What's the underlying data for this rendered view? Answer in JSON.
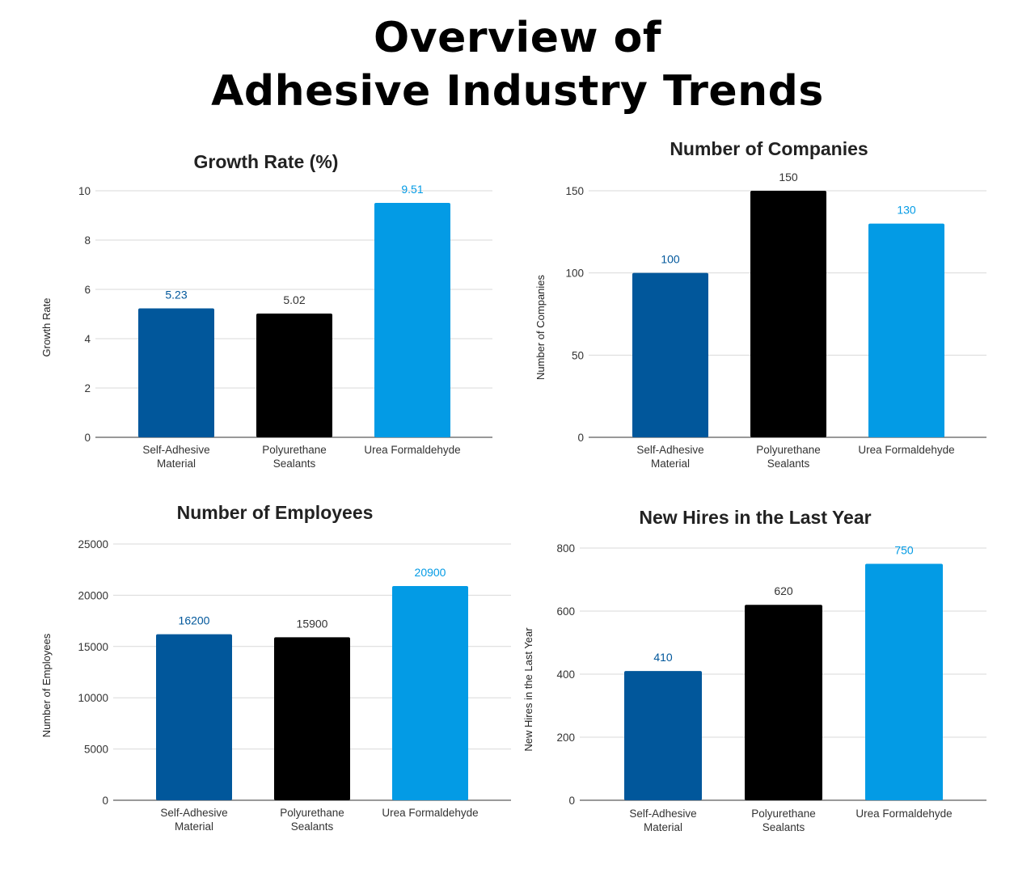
{
  "page": {
    "title_line1": "Overview of",
    "title_line2": "Adhesive Industry Trends"
  },
  "colors": {
    "self_adhesive": "#01579b",
    "polyurethane": "#000000",
    "urea": "#039be5"
  },
  "chart_data": [
    {
      "type": "bar",
      "title": "Growth Rate (%)",
      "xlabel": "",
      "ylabel": "Growth Rate",
      "categories": [
        [
          "Self-Adhesive",
          "Material"
        ],
        [
          "Polyurethane",
          "Sealants"
        ],
        [
          "Urea Formaldehyde"
        ]
      ],
      "values": [
        5.23,
        5.02,
        9.51
      ],
      "value_labels": [
        "5.23",
        "5.02",
        "9.51"
      ],
      "ylim": [
        0,
        10
      ],
      "yticks": [
        0,
        2,
        4,
        6,
        8,
        10
      ],
      "grid": true,
      "legend": "none"
    },
    {
      "type": "bar",
      "title": "Number of Companies",
      "xlabel": "",
      "ylabel": "Number of Companies",
      "categories": [
        [
          "Self-Adhesive",
          "Material"
        ],
        [
          "Polyurethane",
          "Sealants"
        ],
        [
          "Urea Formaldehyde"
        ]
      ],
      "values": [
        100,
        150,
        130
      ],
      "value_labels": [
        "100",
        "150",
        "130"
      ],
      "ylim": [
        0,
        150
      ],
      "yticks": [
        0,
        50,
        100,
        150
      ],
      "grid": true,
      "legend": "none"
    },
    {
      "type": "bar",
      "title": "Number of Employees",
      "xlabel": "",
      "ylabel": "Number of Employees",
      "categories": [
        [
          "Self-Adhesive",
          "Material"
        ],
        [
          "Polyurethane",
          "Sealants"
        ],
        [
          "Urea Formaldehyde"
        ]
      ],
      "values": [
        16200,
        15900,
        20900
      ],
      "value_labels": [
        "16200",
        "15900",
        "20900"
      ],
      "ylim": [
        0,
        25000
      ],
      "yticks": [
        0,
        5000,
        10000,
        15000,
        20000,
        25000
      ],
      "grid": true,
      "legend": "none"
    },
    {
      "type": "bar",
      "title": "New Hires in the Last Year",
      "xlabel": "",
      "ylabel": "New Hires in the Last Year",
      "categories": [
        [
          "Self-Adhesive",
          "Material"
        ],
        [
          "Polyurethane",
          "Sealants"
        ],
        [
          "Urea Formaldehyde"
        ]
      ],
      "values": [
        410,
        620,
        750
      ],
      "value_labels": [
        "410",
        "620",
        "750"
      ],
      "ylim": [
        0,
        800
      ],
      "yticks": [
        0,
        200,
        400,
        600,
        800
      ],
      "grid": true,
      "legend": "none"
    }
  ]
}
